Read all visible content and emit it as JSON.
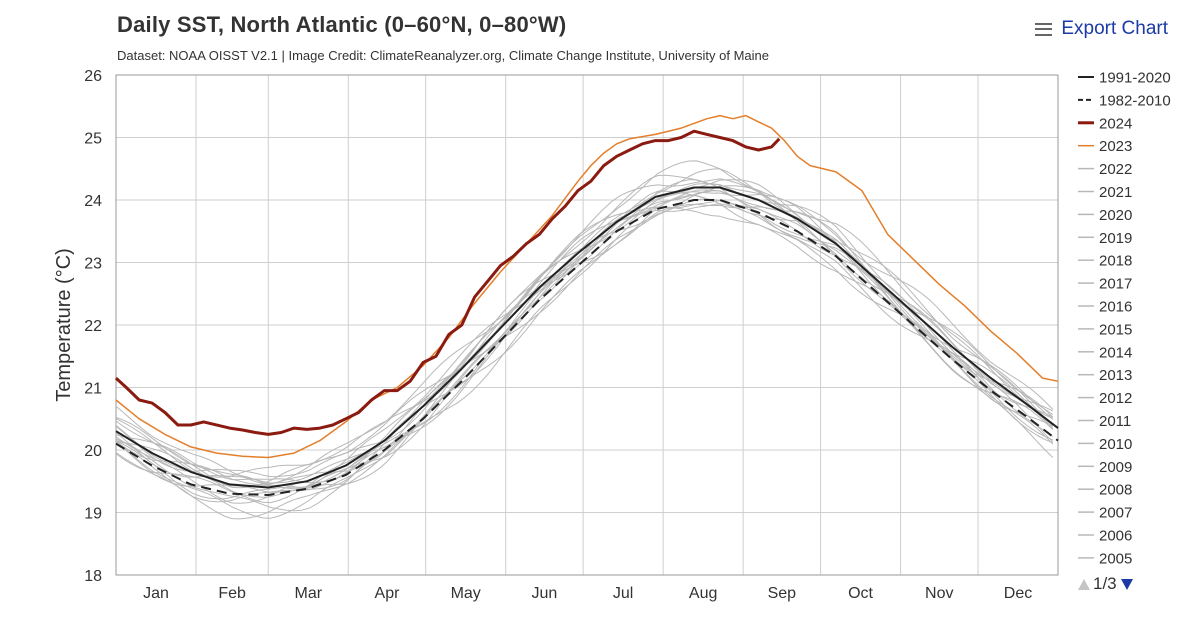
{
  "header": {
    "title": "Daily SST, North Atlantic (0–60°N, 0–80°W)",
    "subtitle": "Dataset: NOAA OISST V2.1 | Image Credit: ClimateReanalyzer.org, Climate Change Institute, University of Maine"
  },
  "toolbar": {
    "export_label": "Export Chart",
    "menu_icon": "hamburger-menu-icon"
  },
  "legend_pager": {
    "label": "1/3",
    "up_icon": "triangle-up-icon",
    "down_icon": "triangle-down-icon"
  },
  "chart_data": {
    "type": "line",
    "title": "Daily SST, North Atlantic (0–60°N, 0–80°W)",
    "ylabel": "Temperature (°C)",
    "xlabel": "",
    "ylim": [
      18,
      26
    ],
    "yticks": [
      18,
      19,
      20,
      21,
      22,
      23,
      24,
      25,
      26
    ],
    "xlim": [
      1,
      366
    ],
    "month_labels": [
      "Jan",
      "Feb",
      "Mar",
      "Apr",
      "May",
      "Jun",
      "Jul",
      "Aug",
      "Sep",
      "Oct",
      "Nov",
      "Dec"
    ],
    "grid": true,
    "legend_position": "right",
    "x_units": "day of year",
    "series": [
      {
        "name": "1991-2020",
        "color": "#222222",
        "style": "solid",
        "width": 2,
        "points": [
          [
            1,
            20.3
          ],
          [
            15,
            19.95
          ],
          [
            30,
            19.65
          ],
          [
            45,
            19.45
          ],
          [
            60,
            19.4
          ],
          [
            75,
            19.5
          ],
          [
            90,
            19.75
          ],
          [
            105,
            20.15
          ],
          [
            120,
            20.7
          ],
          [
            135,
            21.3
          ],
          [
            150,
            21.95
          ],
          [
            165,
            22.6
          ],
          [
            180,
            23.15
          ],
          [
            195,
            23.65
          ],
          [
            210,
            24.05
          ],
          [
            225,
            24.2
          ],
          [
            235,
            24.2
          ],
          [
            250,
            24.0
          ],
          [
            265,
            23.7
          ],
          [
            280,
            23.3
          ],
          [
            295,
            22.75
          ],
          [
            310,
            22.2
          ],
          [
            325,
            21.65
          ],
          [
            340,
            21.15
          ],
          [
            355,
            20.7
          ],
          [
            366,
            20.35
          ]
        ]
      },
      {
        "name": "1982-2010",
        "color": "#222222",
        "style": "dashed",
        "width": 2,
        "points": [
          [
            1,
            20.1
          ],
          [
            15,
            19.75
          ],
          [
            30,
            19.45
          ],
          [
            45,
            19.3
          ],
          [
            60,
            19.28
          ],
          [
            75,
            19.38
          ],
          [
            90,
            19.6
          ],
          [
            105,
            20.0
          ],
          [
            120,
            20.5
          ],
          [
            135,
            21.1
          ],
          [
            150,
            21.75
          ],
          [
            165,
            22.4
          ],
          [
            180,
            22.95
          ],
          [
            195,
            23.5
          ],
          [
            210,
            23.85
          ],
          [
            225,
            24.0
          ],
          [
            235,
            24.0
          ],
          [
            250,
            23.8
          ],
          [
            265,
            23.5
          ],
          [
            280,
            23.1
          ],
          [
            295,
            22.55
          ],
          [
            310,
            22.0
          ],
          [
            325,
            21.45
          ],
          [
            340,
            20.95
          ],
          [
            355,
            20.5
          ],
          [
            366,
            20.15
          ]
        ]
      },
      {
        "name": "2024",
        "color": "#8b1a10",
        "style": "solid",
        "width": 3,
        "points": [
          [
            1,
            21.15
          ],
          [
            5,
            21.0
          ],
          [
            10,
            20.8
          ],
          [
            15,
            20.75
          ],
          [
            20,
            20.6
          ],
          [
            25,
            20.4
          ],
          [
            30,
            20.4
          ],
          [
            35,
            20.45
          ],
          [
            45,
            20.35
          ],
          [
            50,
            20.32
          ],
          [
            55,
            20.28
          ],
          [
            60,
            20.25
          ],
          [
            65,
            20.28
          ],
          [
            70,
            20.35
          ],
          [
            75,
            20.33
          ],
          [
            80,
            20.35
          ],
          [
            85,
            20.4
          ],
          [
            90,
            20.5
          ],
          [
            95,
            20.6
          ],
          [
            100,
            20.8
          ],
          [
            105,
            20.95
          ],
          [
            110,
            20.95
          ],
          [
            115,
            21.1
          ],
          [
            120,
            21.4
          ],
          [
            125,
            21.5
          ],
          [
            130,
            21.85
          ],
          [
            135,
            22.0
          ],
          [
            140,
            22.45
          ],
          [
            145,
            22.7
          ],
          [
            150,
            22.95
          ],
          [
            155,
            23.1
          ],
          [
            160,
            23.3
          ],
          [
            165,
            23.45
          ],
          [
            170,
            23.7
          ],
          [
            175,
            23.9
          ],
          [
            180,
            24.15
          ],
          [
            185,
            24.3
          ],
          [
            190,
            24.55
          ],
          [
            195,
            24.7
          ],
          [
            200,
            24.8
          ],
          [
            205,
            24.9
          ],
          [
            210,
            24.95
          ],
          [
            215,
            24.95
          ],
          [
            220,
            25.0
          ],
          [
            225,
            25.1
          ],
          [
            230,
            25.05
          ],
          [
            235,
            25.0
          ],
          [
            240,
            24.95
          ],
          [
            245,
            24.85
          ],
          [
            250,
            24.8
          ],
          [
            255,
            24.85
          ],
          [
            258,
            24.98
          ]
        ]
      },
      {
        "name": "2023",
        "color": "#e37f2b",
        "style": "solid",
        "width": 1.5,
        "points": [
          [
            1,
            20.8
          ],
          [
            10,
            20.5
          ],
          [
            20,
            20.25
          ],
          [
            30,
            20.05
          ],
          [
            40,
            19.95
          ],
          [
            50,
            19.9
          ],
          [
            60,
            19.88
          ],
          [
            70,
            19.95
          ],
          [
            80,
            20.15
          ],
          [
            90,
            20.45
          ],
          [
            100,
            20.8
          ],
          [
            110,
            21.0
          ],
          [
            120,
            21.35
          ],
          [
            130,
            21.8
          ],
          [
            140,
            22.35
          ],
          [
            150,
            22.85
          ],
          [
            160,
            23.3
          ],
          [
            170,
            23.75
          ],
          [
            180,
            24.3
          ],
          [
            185,
            24.55
          ],
          [
            190,
            24.75
          ],
          [
            195,
            24.9
          ],
          [
            200,
            24.98
          ],
          [
            210,
            25.05
          ],
          [
            220,
            25.15
          ],
          [
            230,
            25.3
          ],
          [
            235,
            25.35
          ],
          [
            240,
            25.3
          ],
          [
            245,
            25.35
          ],
          [
            250,
            25.25
          ],
          [
            255,
            25.15
          ],
          [
            260,
            24.95
          ],
          [
            265,
            24.7
          ],
          [
            270,
            24.55
          ],
          [
            280,
            24.45
          ],
          [
            290,
            24.15
          ],
          [
            300,
            23.45
          ],
          [
            310,
            23.05
          ],
          [
            320,
            22.65
          ],
          [
            330,
            22.3
          ],
          [
            340,
            21.9
          ],
          [
            350,
            21.55
          ],
          [
            360,
            21.15
          ],
          [
            366,
            21.1
          ]
        ]
      },
      {
        "name": "2022",
        "color": "#b8b8b8",
        "style": "solid",
        "width": 1,
        "offset": 0.35
      },
      {
        "name": "2021",
        "color": "#b8b8b8",
        "style": "solid",
        "width": 1,
        "offset": 0.25
      },
      {
        "name": "2020",
        "color": "#b8b8b8",
        "style": "solid",
        "width": 1,
        "offset": 0.3
      },
      {
        "name": "2019",
        "color": "#b8b8b8",
        "style": "solid",
        "width": 1,
        "offset": 0.2
      },
      {
        "name": "2018",
        "color": "#b8b8b8",
        "style": "solid",
        "width": 1,
        "offset": 0.1
      },
      {
        "name": "2017",
        "color": "#b8b8b8",
        "style": "solid",
        "width": 1,
        "offset": 0.15
      },
      {
        "name": "2016",
        "color": "#b8b8b8",
        "style": "solid",
        "width": 1,
        "offset": 0.2
      },
      {
        "name": "2015",
        "color": "#b8b8b8",
        "style": "solid",
        "width": 1,
        "offset": 0.05
      },
      {
        "name": "2014",
        "color": "#b8b8b8",
        "style": "solid",
        "width": 1,
        "offset": 0.0
      },
      {
        "name": "2013",
        "color": "#b8b8b8",
        "style": "solid",
        "width": 1,
        "offset": -0.05
      },
      {
        "name": "2012",
        "color": "#b8b8b8",
        "style": "solid",
        "width": 1,
        "offset": 0.1
      },
      {
        "name": "2011",
        "color": "#b8b8b8",
        "style": "solid",
        "width": 1,
        "offset": -0.1
      },
      {
        "name": "2010",
        "color": "#b8b8b8",
        "style": "solid",
        "width": 1,
        "offset": 0.05
      },
      {
        "name": "2009",
        "color": "#b8b8b8",
        "style": "solid",
        "width": 1,
        "offset": -0.15
      },
      {
        "name": "2008",
        "color": "#b8b8b8",
        "style": "solid",
        "width": 1,
        "offset": -0.2
      },
      {
        "name": "2007",
        "color": "#b8b8b8",
        "style": "solid",
        "width": 1,
        "offset": -0.25
      },
      {
        "name": "2006",
        "color": "#b8b8b8",
        "style": "solid",
        "width": 1,
        "offset": -0.1
      },
      {
        "name": "2005",
        "color": "#b8b8b8",
        "style": "solid",
        "width": 1,
        "offset": -0.05
      }
    ]
  }
}
